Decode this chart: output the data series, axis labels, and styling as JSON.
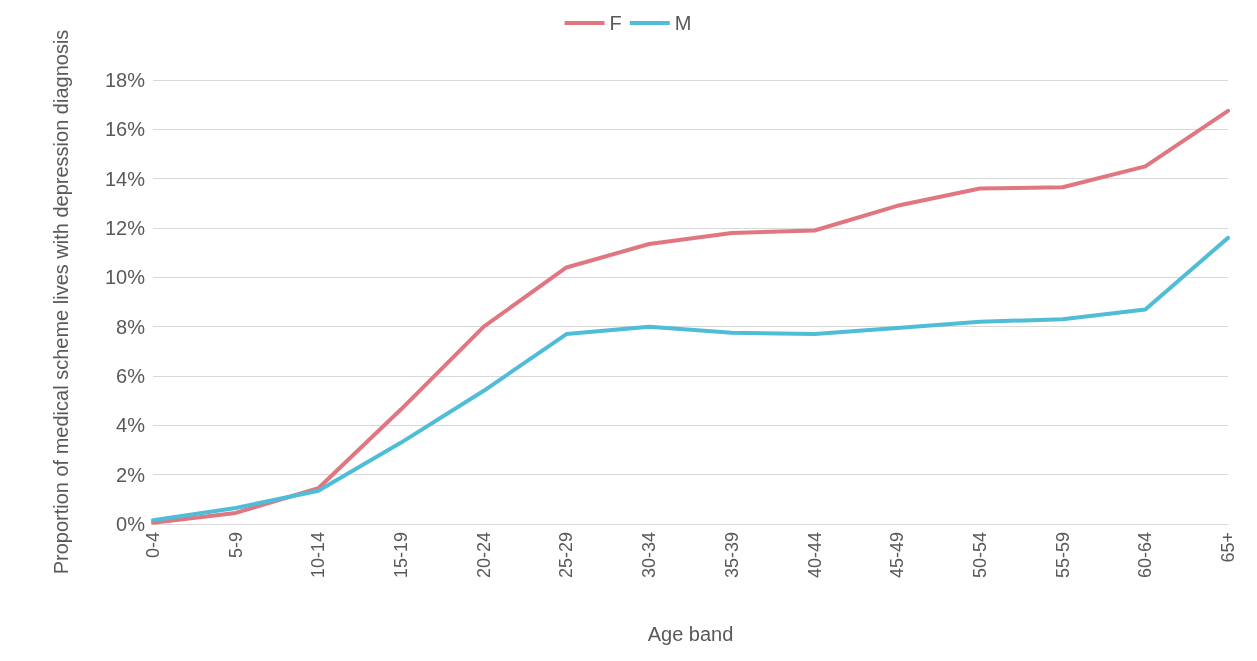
{
  "chart_data": {
    "type": "line",
    "xlabel": "Age band",
    "ylabel": "Proportion of medical scheme lives with depression diagnosis",
    "categories": [
      "0-4",
      "5-9",
      "10-14",
      "15-19",
      "20-24",
      "25-29",
      "30-34",
      "35-39",
      "40-44",
      "45-49",
      "50-54",
      "55-59",
      "60-64",
      "65+"
    ],
    "series": [
      {
        "name": "F",
        "color": "#e07680",
        "values": [
          0.05,
          0.45,
          1.45,
          4.65,
          8.0,
          10.4,
          11.35,
          11.8,
          11.9,
          12.9,
          13.6,
          13.65,
          14.5,
          16.75
        ]
      },
      {
        "name": "M",
        "color": "#4fbcd8",
        "values": [
          0.15,
          0.65,
          1.35,
          3.3,
          5.4,
          7.7,
          8.0,
          7.75,
          7.7,
          7.95,
          8.2,
          8.3,
          8.7,
          11.6
        ]
      }
    ],
    "ylim": [
      0,
      18
    ],
    "yticks": [
      {
        "value": 0,
        "label": "0%"
      },
      {
        "value": 2,
        "label": "2%"
      },
      {
        "value": 4,
        "label": "4%"
      },
      {
        "value": 6,
        "label": "6%"
      },
      {
        "value": 8,
        "label": "8%"
      },
      {
        "value": 10,
        "label": "10%"
      },
      {
        "value": 12,
        "label": "12%"
      },
      {
        "value": 14,
        "label": "14%"
      },
      {
        "value": 16,
        "label": "16%"
      },
      {
        "value": 18,
        "label": "18%"
      }
    ],
    "grid": "y",
    "legend": "top",
    "marker": "none",
    "line_style": "solid"
  }
}
